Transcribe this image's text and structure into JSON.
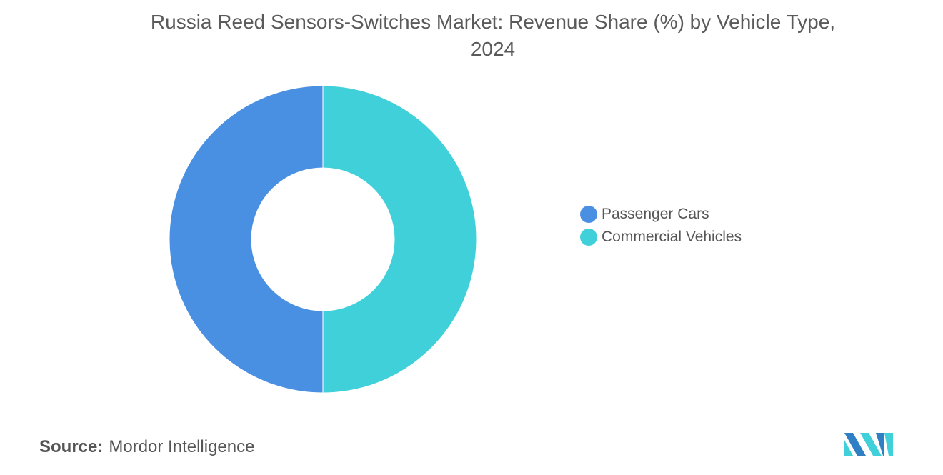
{
  "chart_data": {
    "type": "pie",
    "donut": true,
    "title_lines": [
      "Russia Reed Sensors-Switches Market: Revenue Share (%) by Vehicle Type,",
      "2024"
    ],
    "categories": [
      "Passenger Cars",
      "Commercial Vehicles"
    ],
    "values": [
      50,
      50
    ],
    "colors": [
      "#4a90e2",
      "#40d0da"
    ],
    "legend_position": "right"
  },
  "source": {
    "label": "Source:",
    "value": "Mordor Intelligence"
  },
  "logo": {
    "text": "Mordor Intelligence",
    "colors": [
      "#2e7fc4",
      "#40d0da"
    ]
  }
}
